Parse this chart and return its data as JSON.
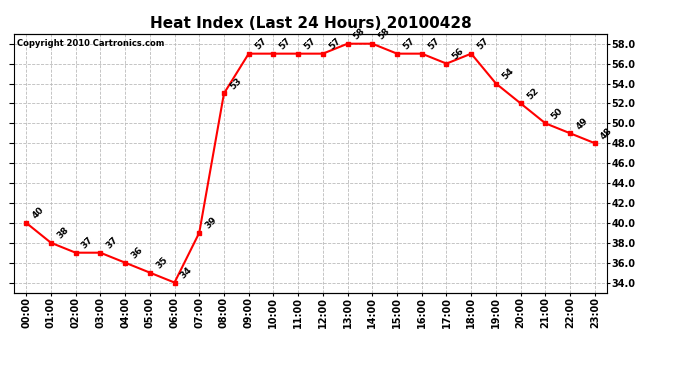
{
  "title": "Heat Index (Last 24 Hours) 20100428",
  "copyright": "Copyright 2010 Cartronics.com",
  "hours": [
    "00:00",
    "01:00",
    "02:00",
    "03:00",
    "04:00",
    "05:00",
    "06:00",
    "07:00",
    "08:00",
    "09:00",
    "10:00",
    "11:00",
    "12:00",
    "13:00",
    "14:00",
    "15:00",
    "16:00",
    "17:00",
    "18:00",
    "19:00",
    "20:00",
    "21:00",
    "22:00",
    "23:00"
  ],
  "values": [
    40,
    38,
    37,
    37,
    36,
    35,
    34,
    39,
    53,
    57,
    57,
    57,
    57,
    58,
    58,
    57,
    57,
    56,
    57,
    54,
    52,
    50,
    49,
    48
  ],
  "ylim": [
    33.0,
    59.0
  ],
  "yticks": [
    34.0,
    36.0,
    38.0,
    40.0,
    42.0,
    44.0,
    46.0,
    48.0,
    50.0,
    52.0,
    54.0,
    56.0,
    58.0
  ],
  "line_color": "red",
  "marker": "s",
  "marker_color": "red",
  "marker_size": 3,
  "bg_color": "white",
  "grid_color": "#bbbbbb",
  "label_fontsize": 7,
  "title_fontsize": 11,
  "annot_fontsize": 6.5
}
